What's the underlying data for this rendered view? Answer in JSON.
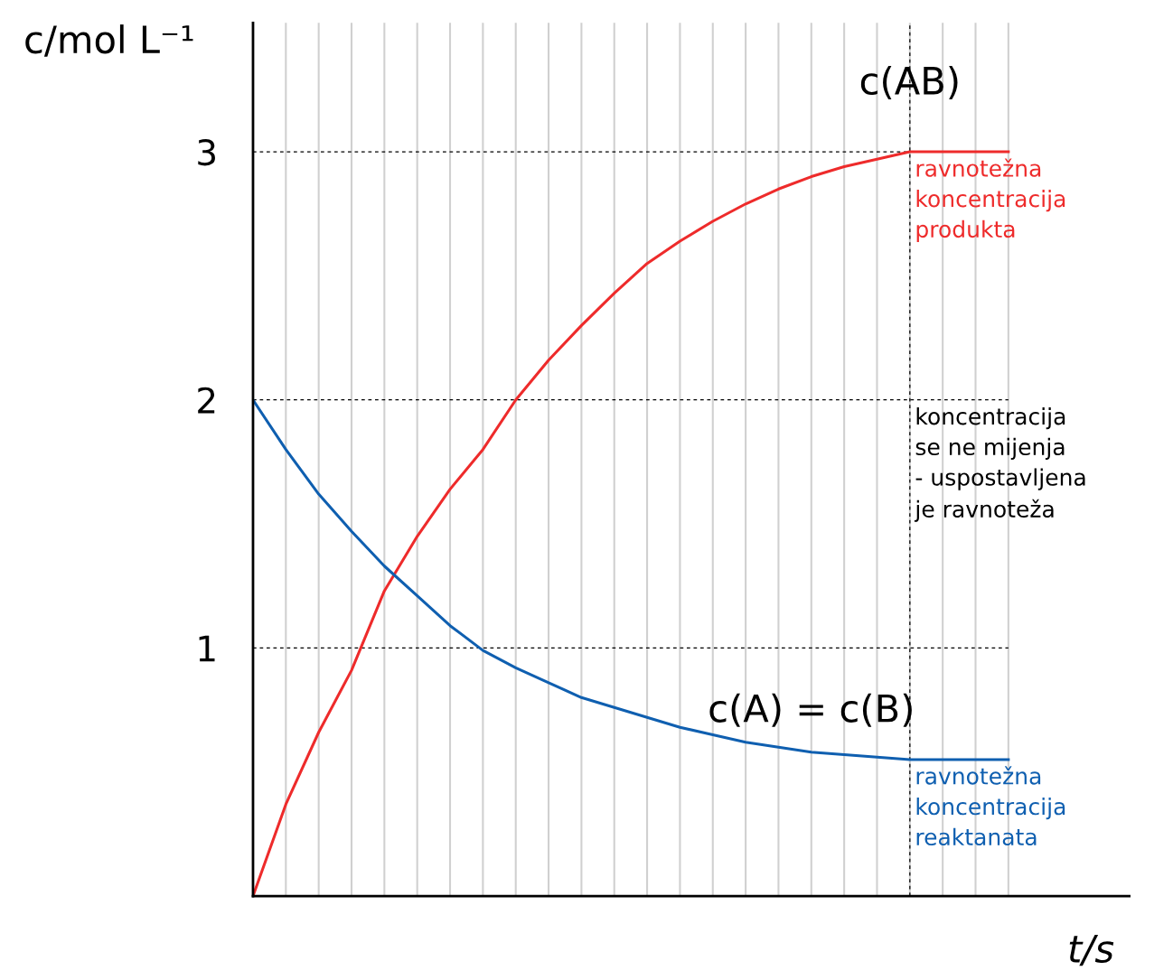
{
  "chart_data": {
    "type": "line",
    "xlabel": "t/s",
    "ylabel": "c/mol L⁻¹",
    "categories": [
      null,
      null,
      null,
      null,
      null,
      null,
      null,
      null,
      null,
      null,
      null,
      null,
      null,
      null,
      null,
      null,
      null,
      null,
      null,
      null,
      null,
      null,
      null,
      null
    ],
    "series": [
      {
        "name": "c(AB)",
        "color": "#ee2b2b",
        "values": [
          0,
          0.37,
          0.66,
          0.91,
          1.23,
          1.45,
          1.64,
          1.8,
          2.0,
          2.16,
          2.3,
          2.43,
          2.55,
          2.64,
          2.72,
          2.79,
          2.85,
          2.9,
          2.94,
          2.97,
          3.0,
          3.0,
          3.0,
          3.0
        ]
      },
      {
        "name": "c(A) = c(B)",
        "color": "#0f5fb0",
        "values": [
          2.0,
          1.8,
          1.62,
          1.47,
          1.33,
          1.21,
          1.09,
          0.99,
          0.92,
          0.86,
          0.8,
          0.76,
          0.72,
          0.68,
          0.65,
          0.62,
          0.6,
          0.58,
          0.57,
          0.56,
          0.55,
          0.55,
          0.55,
          0.55
        ]
      }
    ],
    "ylim": [
      0,
      3.52
    ],
    "yticks": [
      1,
      2,
      3
    ],
    "tick_labels": "y",
    "grid": "x",
    "legend": false,
    "marker": "none",
    "line_style": "solid",
    "ref_lines": [
      {
        "axis": "y",
        "value": 1,
        "color": "#000000",
        "line_style": "dashed"
      },
      {
        "axis": "y",
        "value": 2,
        "color": "#000000",
        "line_style": "dashed"
      },
      {
        "axis": "y",
        "value": 3,
        "color": "#000000",
        "line_style": "dashed"
      }
    ],
    "annotations": [
      "ravnotežna\nkoncentracija\nprodukta",
      "koncentracija\nse ne mijenja\n- uspostavljena\nje ravnoteža",
      "ravnotežna\nkoncentracija\nreaktanata"
    ]
  }
}
